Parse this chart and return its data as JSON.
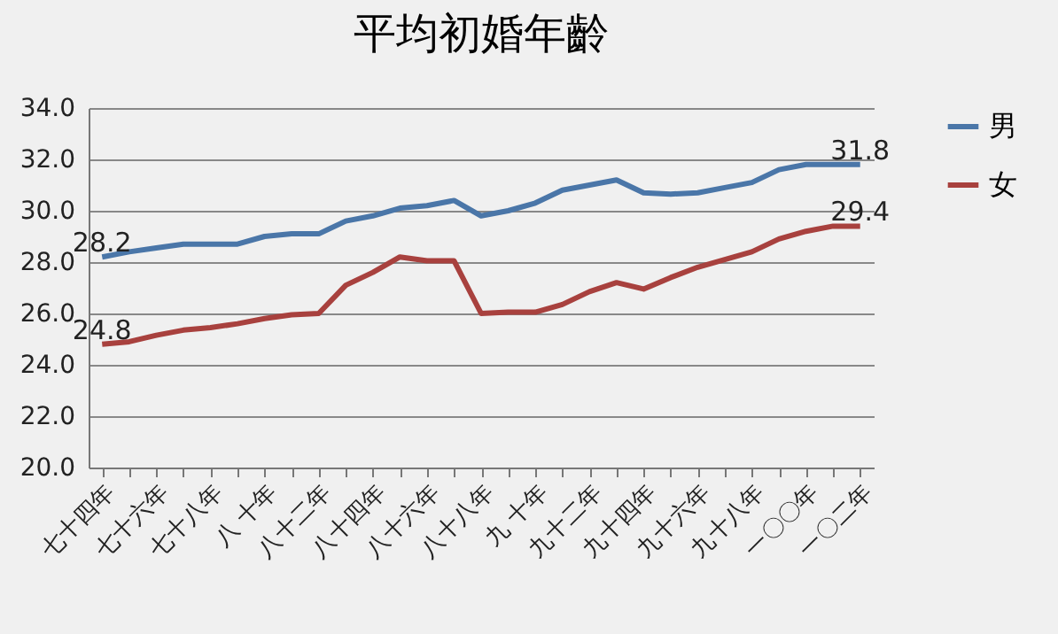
{
  "chart_data": {
    "type": "line",
    "title": "平均初婚年齡",
    "categories": [
      "七十四年",
      null,
      "七十六年",
      null,
      "七十八年",
      null,
      "八 十年",
      null,
      "八十二年",
      null,
      "八十四年",
      null,
      "八十六年",
      null,
      "八十八年",
      null,
      "九 十年",
      null,
      "九十二年",
      null,
      "九十四年",
      null,
      "九十六年",
      null,
      "九十八年",
      null,
      "一〇〇年",
      null,
      "一〇二年"
    ],
    "series": [
      {
        "name": "男",
        "color": "#4a76a8",
        "values": [
          28.2,
          28.4,
          28.55,
          28.7,
          28.7,
          28.7,
          29.0,
          29.1,
          29.1,
          29.6,
          29.8,
          30.1,
          30.2,
          30.4,
          29.8,
          30.0,
          30.3,
          30.8,
          31.0,
          31.2,
          30.7,
          30.65,
          30.7,
          30.9,
          31.1,
          31.6,
          31.8,
          31.8,
          31.8
        ],
        "value_labels": [
          "28.2",
          null,
          null,
          null,
          null,
          null,
          null,
          null,
          null,
          null,
          null,
          null,
          null,
          null,
          null,
          null,
          null,
          null,
          null,
          null,
          null,
          null,
          null,
          null,
          null,
          null,
          null,
          null,
          "31.8"
        ]
      },
      {
        "name": "女",
        "color": "#a8413e",
        "values": [
          24.8,
          24.9,
          25.15,
          25.35,
          25.45,
          25.6,
          25.8,
          25.95,
          26.0,
          27.1,
          27.6,
          28.2,
          28.05,
          28.05,
          26.0,
          26.05,
          26.05,
          26.35,
          26.85,
          27.2,
          26.95,
          27.4,
          27.8,
          28.1,
          28.4,
          28.9,
          29.2,
          29.4,
          29.4
        ],
        "value_labels": [
          "24.8",
          null,
          null,
          null,
          null,
          null,
          null,
          null,
          null,
          null,
          null,
          null,
          null,
          null,
          null,
          null,
          null,
          null,
          null,
          null,
          null,
          null,
          null,
          null,
          null,
          null,
          null,
          null,
          "29.4"
        ]
      }
    ],
    "ylim": [
      20,
      34
    ],
    "yticks": [
      {
        "value": 20,
        "label": "20.0"
      },
      {
        "value": 22,
        "label": "22.0"
      },
      {
        "value": 24,
        "label": "24.0"
      },
      {
        "value": 26,
        "label": "26.0"
      },
      {
        "value": 28,
        "label": "28.0"
      },
      {
        "value": 30,
        "label": "30.0"
      },
      {
        "value": 32,
        "label": "32.0"
      },
      {
        "value": 34,
        "label": "34.0"
      }
    ],
    "grid": "y",
    "legend": "right",
    "marker": "none",
    "line_style": "solid"
  }
}
